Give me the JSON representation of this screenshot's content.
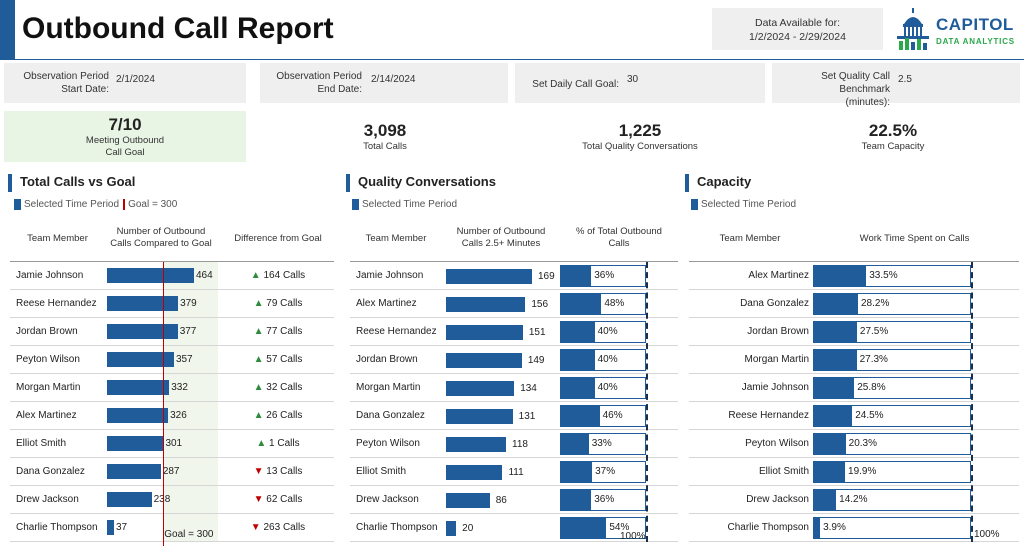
{
  "header": {
    "title": "Outbound Call Report",
    "availability_label": "Data Available for:",
    "availability_range": "1/2/2024 - 2/29/2024",
    "logo_line1": "CAPITOL",
    "logo_line2": "DATA ANALYTICS"
  },
  "params": {
    "start_label_1": "Observation Period",
    "start_label_2": "Start Date:",
    "start_value": "2/1/2024",
    "end_label_1": "Observation Period",
    "end_label_2": "End Date:",
    "end_value": "2/14/2024",
    "goal_label": "Set Daily Call Goal:",
    "goal_value": "30",
    "bench_label_1": "Set Quality Call Benchmark",
    "bench_label_2": "(minutes):",
    "bench_value": "2.5"
  },
  "kpis": {
    "meeting_value": "7/10",
    "meeting_label_1": "Meeting Outbound",
    "meeting_label_2": "Call Goal",
    "total_value": "3,098",
    "total_label": "Total Calls",
    "quality_value": "1,225",
    "quality_label": "Total Quality Conversations",
    "capacity_value": "22.5%",
    "capacity_label": "Team Capacity"
  },
  "calls_panel": {
    "title": "Total Calls vs Goal",
    "legend_selected": "Selected Time Period",
    "legend_goal": "Goal = 300",
    "col_member": "Team Member",
    "col_calls_1": "Number of Outbound",
    "col_calls_2": "Calls Compared to Goal",
    "col_diff": "Difference from Goal",
    "goal": 300,
    "goal_annotation": "Goal = 300",
    "rows": [
      {
        "name": "Jamie Johnson",
        "value": 464,
        "label": "464",
        "dir": "up",
        "diff": "164 Calls"
      },
      {
        "name": "Reese Hernandez",
        "value": 379,
        "label": "379",
        "dir": "up",
        "diff": "79 Calls"
      },
      {
        "name": "Jordan Brown",
        "value": 377,
        "label": "377",
        "dir": "up",
        "diff": "77 Calls"
      },
      {
        "name": "Peyton Wilson",
        "value": 357,
        "label": "357",
        "dir": "up",
        "diff": "57 Calls"
      },
      {
        "name": "Morgan Martin",
        "value": 332,
        "label": "332",
        "dir": "up",
        "diff": "32 Calls"
      },
      {
        "name": "Alex Martinez",
        "value": 326,
        "label": "326",
        "dir": "up",
        "diff": "26 Calls"
      },
      {
        "name": "Elliot Smith",
        "value": 301,
        "label": "301",
        "dir": "up",
        "diff": "1 Calls"
      },
      {
        "name": "Dana Gonzalez",
        "value": 287,
        "label": "287",
        "dir": "down",
        "diff": "13 Calls"
      },
      {
        "name": "Drew Jackson",
        "value": 238,
        "label": "238",
        "dir": "down",
        "diff": "62 Calls"
      },
      {
        "name": "Charlie Thompson",
        "value": 37,
        "label": "37",
        "dir": "down",
        "diff": "263 Calls"
      }
    ]
  },
  "quality_panel": {
    "title": "Quality Conversations",
    "legend_selected": "Selected Time Period",
    "col_member": "Team Member",
    "col_calls_1": "Number of Outbound",
    "col_calls_2": "Calls 2.5+ Minutes",
    "col_pct_1": "% of Total Outbound",
    "col_pct_2": "Calls",
    "max_annotation": "100%",
    "rows": [
      {
        "name": "Jamie Johnson",
        "value": 169,
        "label": "169",
        "pct": 36,
        "pct_label": "36%"
      },
      {
        "name": "Alex Martinez",
        "value": 156,
        "label": "156",
        "pct": 48,
        "pct_label": "48%"
      },
      {
        "name": "Reese Hernandez",
        "value": 151,
        "label": "151",
        "pct": 40,
        "pct_label": "40%"
      },
      {
        "name": "Jordan Brown",
        "value": 149,
        "label": "149",
        "pct": 40,
        "pct_label": "40%"
      },
      {
        "name": "Morgan Martin",
        "value": 134,
        "label": "134",
        "pct": 40,
        "pct_label": "40%"
      },
      {
        "name": "Dana Gonzalez",
        "value": 131,
        "label": "131",
        "pct": 46,
        "pct_label": "46%"
      },
      {
        "name": "Peyton Wilson",
        "value": 118,
        "label": "118",
        "pct": 33,
        "pct_label": "33%"
      },
      {
        "name": "Elliot Smith",
        "value": 111,
        "label": "111",
        "pct": 37,
        "pct_label": "37%"
      },
      {
        "name": "Drew Jackson",
        "value": 86,
        "label": "86",
        "pct": 36,
        "pct_label": "36%"
      },
      {
        "name": "Charlie Thompson",
        "value": 20,
        "label": "20",
        "pct": 54,
        "pct_label": "54%"
      }
    ]
  },
  "capacity_panel": {
    "title": "Capacity",
    "legend_selected": "Selected Time Period",
    "col_member": "Team Member",
    "col_work": "Work Time Spent on Calls",
    "max_annotation": "100%",
    "rows": [
      {
        "name": "Alex Martinez",
        "pct": 33.5,
        "pct_label": "33.5%"
      },
      {
        "name": "Dana Gonzalez",
        "pct": 28.2,
        "pct_label": "28.2%"
      },
      {
        "name": "Jordan Brown",
        "pct": 27.5,
        "pct_label": "27.5%"
      },
      {
        "name": "Morgan Martin",
        "pct": 27.3,
        "pct_label": "27.3%"
      },
      {
        "name": "Jamie Johnson",
        "pct": 25.8,
        "pct_label": "25.8%"
      },
      {
        "name": "Reese Hernandez",
        "pct": 24.5,
        "pct_label": "24.5%"
      },
      {
        "name": "Peyton Wilson",
        "pct": 20.3,
        "pct_label": "20.3%"
      },
      {
        "name": "Elliot Smith",
        "pct": 19.9,
        "pct_label": "19.9%"
      },
      {
        "name": "Drew Jackson",
        "pct": 14.2,
        "pct_label": "14.2%"
      },
      {
        "name": "Charlie Thompson",
        "pct": 3.9,
        "pct_label": "3.9%"
      }
    ]
  },
  "colors": {
    "accent": "#1f5c99",
    "goal_line": "#c00000",
    "up": "#2e8b3d",
    "down": "#c00000",
    "kpi_highlight": "#e8f4e4"
  }
}
